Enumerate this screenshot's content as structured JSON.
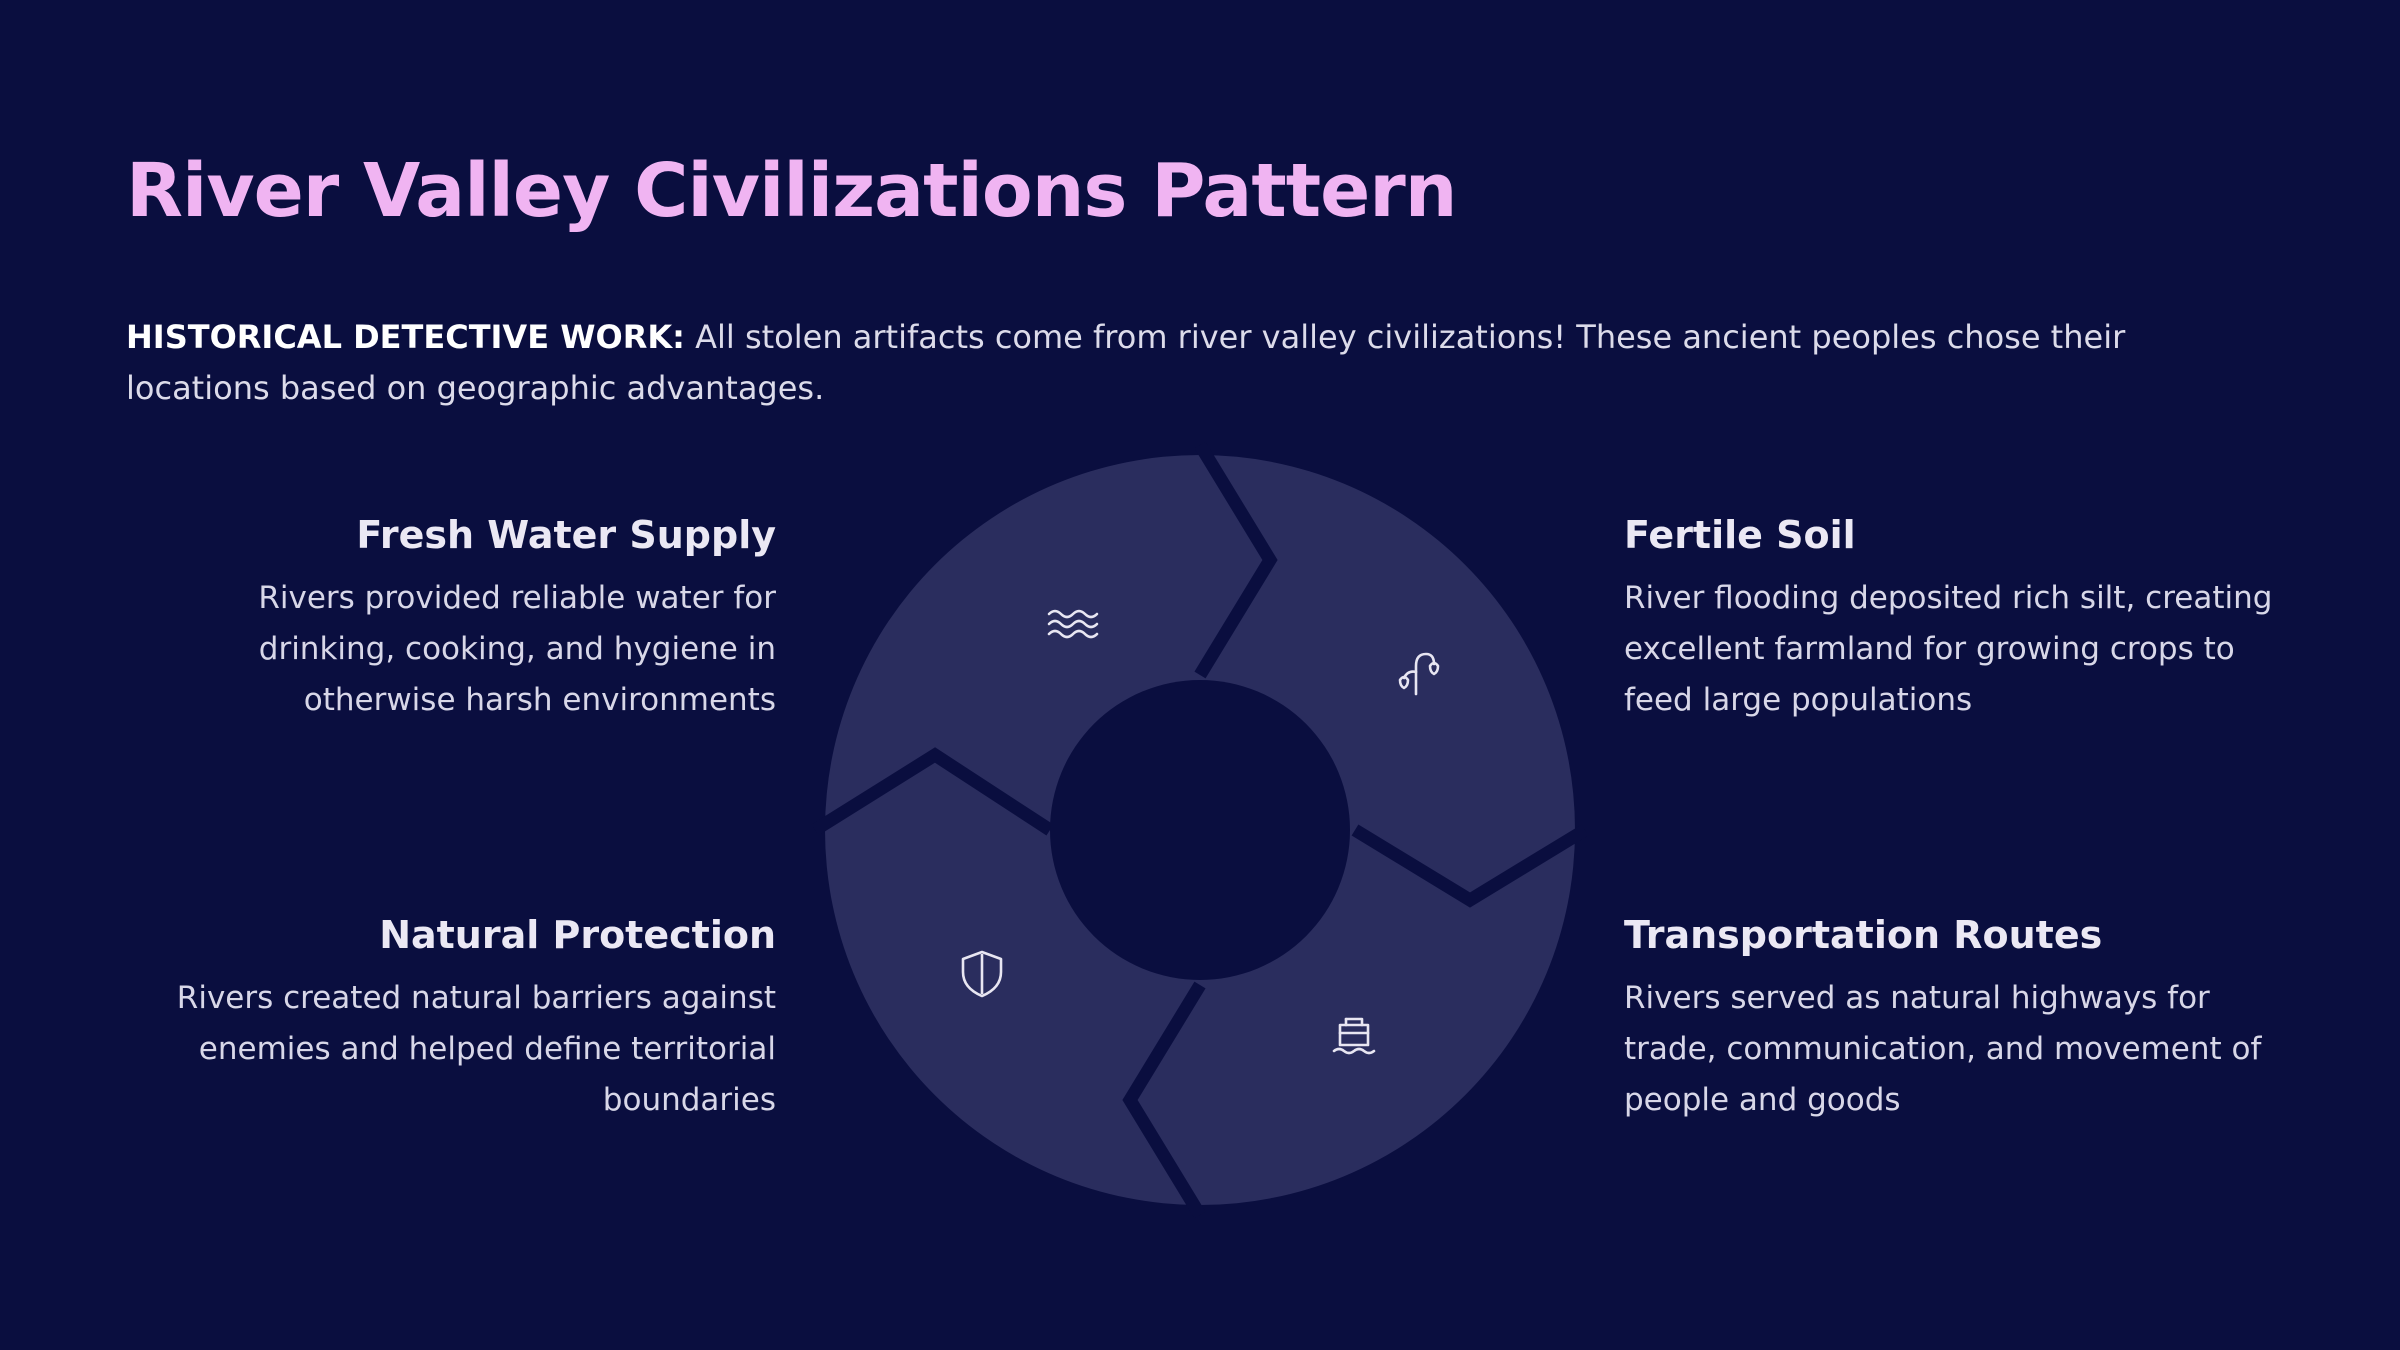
{
  "title": "River Valley Civilizations Pattern",
  "intro": {
    "lead": "HISTORICAL DETECTIVE WORK:",
    "text": " All stolen artifacts come from river valley civilizations! These ancient peoples chose their locations based on geographic advantages."
  },
  "blocks": {
    "water": {
      "heading": "Fresh Water Supply",
      "body": "Rivers provided reliable water for drinking, cooking, and hygiene in otherwise harsh environments",
      "icon": "water-waves-icon"
    },
    "soil": {
      "heading": "Fertile Soil",
      "body": "River flooding deposited rich silt, creating excellent farmland for growing crops to feed large populations",
      "icon": "plant-sprout-icon"
    },
    "protection": {
      "heading": "Natural Protection",
      "body": "Rivers created natural barriers against enemies and helped define territorial boundaries",
      "icon": "shield-icon"
    },
    "transport": {
      "heading": "Transportation Routes",
      "body": "Rivers served as natural highways for trade, communication, and movement of people and goods",
      "icon": "boat-icon"
    }
  },
  "colors": {
    "background": "#0a0e3f",
    "title": "#f0b4f2",
    "segment": "#2a2d5e",
    "icon_stroke": "#e8e6f2"
  }
}
